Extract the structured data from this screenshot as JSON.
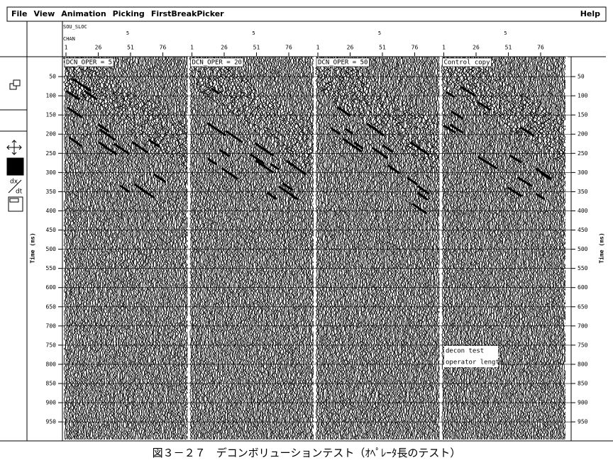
{
  "menu": {
    "left": [
      "File",
      "View",
      "Animation",
      "Picking",
      "FirstBreakPicker"
    ],
    "right": "Help"
  },
  "header": {
    "sou_label": "SOU_SLOC",
    "chan_label": "CHAN",
    "chan_ticks": [
      1,
      26,
      51,
      76
    ]
  },
  "panels": [
    {
      "label": "DCN_OPER = 5",
      "sou": "5"
    },
    {
      "label": "DCN_OPER = 20",
      "sou": "5"
    },
    {
      "label": "DCN_OPER = 50",
      "sou": "5"
    },
    {
      "label": "Control copy",
      "sou": "5"
    }
  ],
  "time_axis": {
    "label": "Time (ms)",
    "ticks": [
      50,
      100,
      150,
      200,
      250,
      300,
      350,
      400,
      450,
      500,
      550,
      600,
      650,
      700,
      750,
      800,
      850,
      900,
      950
    ]
  },
  "annotation": [
    "decon test",
    "operator length"
  ],
  "caption": "図３－２７　デコンボリューションテスト（ｵﾍﾟﾚｰﾀ長のテスト）"
}
